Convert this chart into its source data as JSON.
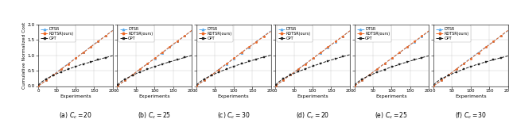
{
  "n_experiments": 200,
  "subplots": [
    {
      "label": "(a) $C_c = 20$"
    },
    {
      "label": "(b) $C_c = 25$"
    },
    {
      "label": "(c) $C_c = 30$"
    },
    {
      "label": "(d) $C_c = 20$"
    },
    {
      "label": "(e) $C_c = 25$"
    },
    {
      "label": "(f) $C_c = 30$"
    }
  ],
  "legend_labels": [
    "DTSR",
    "RDTSR(ours)",
    "OPT"
  ],
  "dtsr_color": "#55aaee",
  "rdtsr_color": "#ee6622",
  "opt_color": "#222222",
  "xlim": [
    0,
    200
  ],
  "ylim": [
    0.0,
    2.0
  ],
  "yticks": [
    0.0,
    0.5,
    1.0,
    1.5,
    2.0
  ],
  "xticks": [
    0,
    50,
    100,
    150,
    200
  ],
  "xlabel": "Experiments",
  "ylabel": "Cumulative Normalized Cost",
  "figwidth": 6.4,
  "figheight": 1.55,
  "dpi": 100
}
